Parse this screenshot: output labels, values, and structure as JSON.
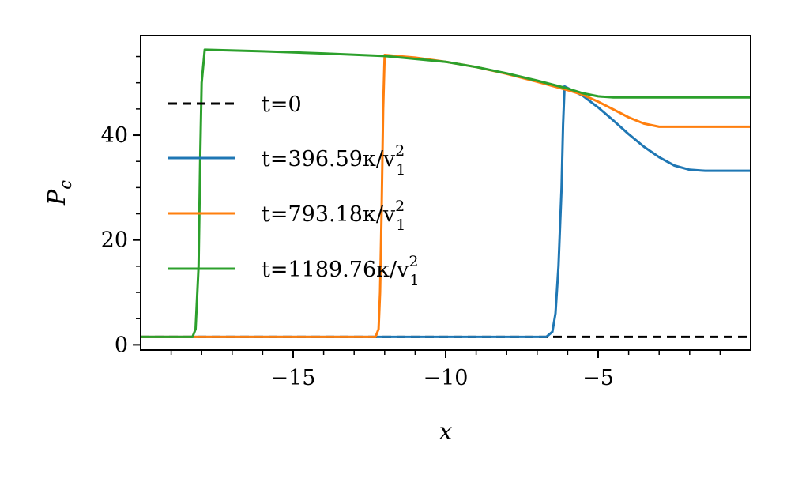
{
  "chart_data": {
    "type": "line",
    "xlabel": "x",
    "ylabel": "P_c",
    "ylabel_parts": {
      "main": "P",
      "sub": "c"
    },
    "xlim": [
      -20,
      0
    ],
    "ylim": [
      -1,
      59
    ],
    "xticks": [
      -15,
      -10,
      -5
    ],
    "yticks": [
      0,
      20,
      40
    ],
    "xminor_step": 1,
    "yminor_step": 5,
    "grid": false,
    "legend_position": "left",
    "series": [
      {
        "name": "t=0",
        "label_parts": [
          "t=0",
          "",
          ""
        ],
        "color": "#000000",
        "dashed": true,
        "x": [
          -20,
          0
        ],
        "y": [
          1.5,
          1.5
        ]
      },
      {
        "name": "t=396.59κ/v_1^2",
        "label_parts": [
          "t=396.59κ/v",
          "1",
          "2"
        ],
        "color": "#1f77b4",
        "dashed": false,
        "x": [
          -20,
          -6.7,
          -6.5,
          -6.4,
          -6.3,
          -6.2,
          -6.15,
          -6.1,
          -5.5,
          -5.0,
          -4.5,
          -4.0,
          -3.5,
          -3.0,
          -2.5,
          -2.0,
          -1.5,
          -1.3,
          0
        ],
        "y": [
          1.5,
          1.5,
          2.5,
          6.0,
          15.0,
          30.0,
          42.0,
          49.3,
          47.5,
          45.3,
          42.8,
          40.2,
          37.8,
          35.8,
          34.2,
          33.4,
          33.2,
          33.2,
          33.2
        ]
      },
      {
        "name": "t=793.18κ/v_1^2",
        "label_parts": [
          "t=793.18κ/v",
          "1",
          "2"
        ],
        "color": "#ff7f0e",
        "dashed": false,
        "x": [
          -20,
          -12.3,
          -12.2,
          -12.15,
          -12.1,
          -12.05,
          -12.0,
          -11.0,
          -10.0,
          -9.0,
          -8.0,
          -7.0,
          -6.0,
          -5.5,
          -5.0,
          -4.5,
          -4.0,
          -3.5,
          -3.0,
          -2.5,
          0
        ],
        "y": [
          1.5,
          1.5,
          3.0,
          10.0,
          25.0,
          45.0,
          55.3,
          54.8,
          54.0,
          53.0,
          51.7,
          50.2,
          48.6,
          47.7,
          46.4,
          44.9,
          43.4,
          42.2,
          41.6,
          41.6,
          41.6
        ]
      },
      {
        "name": "t=1189.76κ/v_1^2",
        "label_parts": [
          "t=1189.76κ/v",
          "1",
          "2"
        ],
        "color": "#2ca02c",
        "dashed": false,
        "x": [
          -20,
          -18.3,
          -18.2,
          -18.1,
          -18.05,
          -18.0,
          -17.9,
          -16.0,
          -14.0,
          -12.0,
          -10.0,
          -9.0,
          -8.0,
          -7.0,
          -6.0,
          -5.5,
          -5.0,
          -4.5,
          -4.0,
          0
        ],
        "y": [
          1.5,
          1.5,
          3.0,
          15.0,
          35.0,
          50.0,
          56.3,
          56.0,
          55.6,
          55.1,
          54.0,
          53.0,
          51.8,
          50.4,
          48.9,
          48.0,
          47.4,
          47.2,
          47.2,
          47.2
        ]
      }
    ]
  }
}
